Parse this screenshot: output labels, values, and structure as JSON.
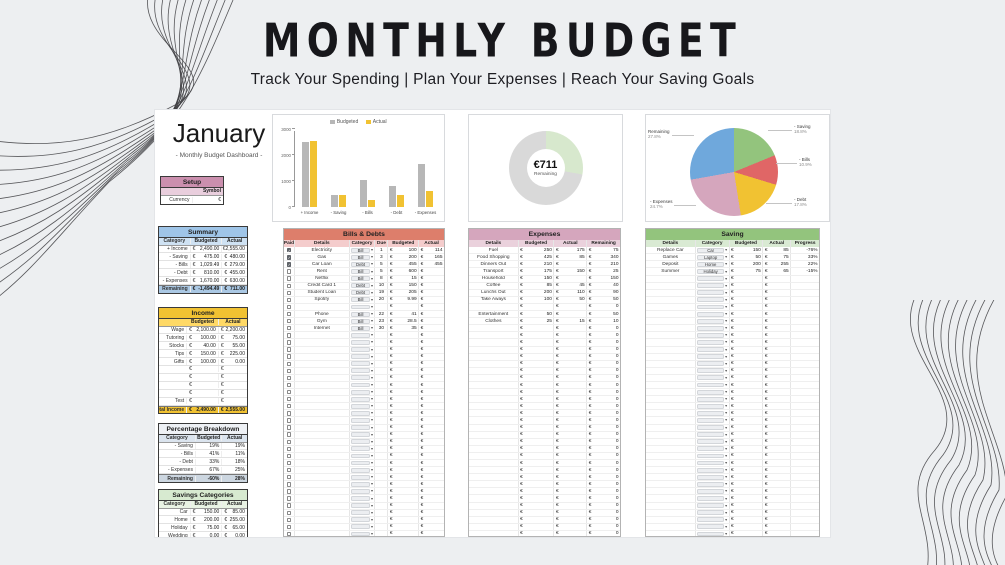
{
  "page": {
    "title": "MONTHLY BUDGET",
    "tagline": "Track Your Spending | Plan Your Expenses | Reach Your Saving Goals"
  },
  "dashboard": {
    "month": "January",
    "subtitle": "- Monthly Budget Dashboard -"
  },
  "currency_symbol": "€",
  "setup": {
    "title": "Setup",
    "col2_header": "Symbol",
    "rows": [
      [
        "Currency",
        "€"
      ]
    ]
  },
  "summary": {
    "title": "Summary",
    "columns": [
      "Category",
      "Budgeted",
      "Actual"
    ],
    "rows": [
      [
        "+ Income",
        "€ 2,490.00",
        "€ 2,555.00"
      ],
      [
        "- Saving",
        "€ 475.00",
        "€ 480.00"
      ],
      [
        "- Bills",
        "€ 1,029.49",
        "€ 279.00"
      ],
      [
        "- Debt",
        "€ 810.00",
        "€ 455.00"
      ],
      [
        "- Expenses",
        "€ 1,670.00",
        "€ 630.00"
      ]
    ],
    "footer": [
      "Remaining",
      "€ -1,494.49",
      "€ 711.00"
    ]
  },
  "income": {
    "title": "Income",
    "columns": [
      "",
      "Budgeted",
      "Actual"
    ],
    "rows": [
      [
        "Wage",
        "€ 2,100.00",
        "€ 2,200.00"
      ],
      [
        "Tutoring",
        "€ 100.00",
        "€ 75.00"
      ],
      [
        "Stocks",
        "€ 40.00",
        "€ 55.00"
      ],
      [
        "Tips",
        "€ 150.00",
        "€ 225.00"
      ],
      [
        "Gifts",
        "€ 100.00",
        "€ 0.00"
      ],
      [
        "",
        "€",
        "€"
      ],
      [
        "",
        "€",
        "€"
      ],
      [
        "",
        "€",
        "€"
      ],
      [
        "",
        "€",
        "€"
      ],
      [
        "Test",
        "€",
        "€"
      ]
    ],
    "footer": [
      "Total Income",
      "€ 2,490.00",
      "€ 2,555.00"
    ]
  },
  "percentage_breakdown": {
    "title": "Percentage Breakdown",
    "columns": [
      "Category",
      "Budgeted",
      "Actual"
    ],
    "rows": [
      [
        "- Saving",
        "19%",
        "19%"
      ],
      [
        "- Bills",
        "41%",
        "11%"
      ],
      [
        "- Debt",
        "33%",
        "18%"
      ],
      [
        "- Expenses",
        "67%",
        "25%"
      ]
    ],
    "footer": [
      "Remaining",
      "-60%",
      "28%"
    ]
  },
  "savings_categories": {
    "title": "Savings Categories",
    "columns": [
      "Category",
      "Budgeted",
      "Actual"
    ],
    "rows": [
      [
        "Car",
        "€ 150.00",
        "€ 85.00"
      ],
      [
        "Home",
        "€ 200.00",
        "€ 255.00"
      ],
      [
        "Holiday",
        "€ 75.00",
        "€ 65.00"
      ],
      [
        "Wedding",
        "€ 0.00",
        "€ 0.00"
      ]
    ]
  },
  "chart_data": [
    {
      "type": "bar",
      "title": "",
      "categories": [
        "+ Income",
        "- Saving",
        "- Bills",
        "- Debt",
        "- Expenses"
      ],
      "series": [
        {
          "name": "Budgeted",
          "color": "#b7b7b7",
          "values": [
            2490,
            475,
            1029.49,
            810,
            1670
          ]
        },
        {
          "name": "Actual",
          "color": "#f1c232",
          "values": [
            2555,
            480,
            279,
            455,
            630
          ]
        }
      ],
      "ylim": [
        0,
        3000
      ],
      "yticks": [
        0,
        1000,
        2000,
        3000
      ],
      "legend_position": "top"
    },
    {
      "type": "pie",
      "variant": "donut",
      "center_value": "€711",
      "center_label": "Remaining",
      "slices": [
        {
          "label": "Remaining",
          "pct": 27.8,
          "color": "#d7e8cd"
        },
        {
          "label": "",
          "pct": 72.2,
          "color": "#d9d9d9"
        }
      ]
    },
    {
      "type": "pie",
      "slices": [
        {
          "label": "- Saving",
          "pct": 18.8,
          "color": "#93c47d"
        },
        {
          "label": "- Bills",
          "pct": 10.9,
          "color": "#e06666"
        },
        {
          "label": "- Debt",
          "pct": 17.8,
          "color": "#f1c232"
        },
        {
          "label": "- Expenses",
          "pct": 24.7,
          "color": "#d5a6bd"
        },
        {
          "label": "Remaining",
          "pct": 27.8,
          "color": "#6fa8dc"
        }
      ],
      "legend_position": "outside-labels"
    }
  ],
  "bills_debts": {
    "title": "Bills & Debts",
    "columns": [
      "Paid",
      "Details",
      "Category",
      "Due",
      "Budgeted",
      "Actual"
    ],
    "rows": [
      {
        "paid": true,
        "details": "Electricity",
        "category": "Bill",
        "due": "1",
        "budgeted": "100",
        "actual": "114"
      },
      {
        "paid": true,
        "details": "Gas",
        "category": "Bill",
        "due": "3",
        "budgeted": "200",
        "actual": "165"
      },
      {
        "paid": true,
        "details": "Car Loan",
        "category": "Debt",
        "due": "5",
        "budgeted": "455",
        "actual": "455"
      },
      {
        "paid": false,
        "details": "Rent",
        "category": "Bill",
        "due": "5",
        "budgeted": "600",
        "actual": ""
      },
      {
        "paid": false,
        "details": "Netflix",
        "category": "Bill",
        "due": "8",
        "budgeted": "15",
        "actual": ""
      },
      {
        "paid": false,
        "details": "Credit Card 1",
        "category": "Debt",
        "due": "10",
        "budgeted": "150",
        "actual": ""
      },
      {
        "paid": false,
        "details": "Student Loan",
        "category": "Debt",
        "due": "19",
        "budgeted": "205",
        "actual": ""
      },
      {
        "paid": false,
        "details": "Spotify",
        "category": "Bill",
        "due": "20",
        "budgeted": "9.99",
        "actual": ""
      },
      {
        "paid": false,
        "details": "",
        "category": "",
        "due": "",
        "budgeted": "",
        "actual": ""
      },
      {
        "paid": false,
        "details": "Phone",
        "category": "Bill",
        "due": "22",
        "budgeted": "41",
        "actual": ""
      },
      {
        "paid": false,
        "details": "Gym",
        "category": "Bill",
        "due": "23",
        "budgeted": "28.5",
        "actual": ""
      },
      {
        "paid": false,
        "details": "Internet",
        "category": "Bill",
        "due": "30",
        "budgeted": "35",
        "actual": ""
      }
    ],
    "empty_rows": 29
  },
  "expenses": {
    "title": "Expenses",
    "columns": [
      "Details",
      "Budgeted",
      "Actual",
      "Remaining"
    ],
    "rows": [
      [
        "Fuel",
        "250",
        "175",
        "75"
      ],
      [
        "Food Shopping",
        "425",
        "85",
        "340"
      ],
      [
        "Dinners Out",
        "210",
        "",
        "210"
      ],
      [
        "Transport",
        "175",
        "150",
        "25"
      ],
      [
        "Household",
        "150",
        "",
        "150"
      ],
      [
        "Coffee",
        "85",
        "45",
        "40"
      ],
      [
        "Lunchs Out",
        "200",
        "110",
        "90"
      ],
      [
        "Take Aways",
        "100",
        "50",
        "50"
      ],
      [
        "",
        "",
        "",
        "0"
      ],
      [
        "Entertainment",
        "50",
        "",
        "50"
      ],
      [
        "Clothes",
        "25",
        "15",
        "10"
      ]
    ],
    "empty_rows": 30,
    "empty_remaining": "0"
  },
  "saving": {
    "title": "Saving",
    "columns": [
      "Details",
      "Category",
      "Budgeted",
      "Actual",
      "Progress"
    ],
    "rows": [
      [
        "Replace Car",
        "Car",
        "150",
        "85",
        "-76%"
      ],
      [
        "Games",
        "Laptop",
        "50",
        "75",
        "33%"
      ],
      [
        "Deposit",
        "Home",
        "200",
        "255",
        "22%"
      ],
      [
        "Summer",
        "Holiday",
        "75",
        "65",
        "-15%"
      ]
    ],
    "empty_rows": 37
  }
}
